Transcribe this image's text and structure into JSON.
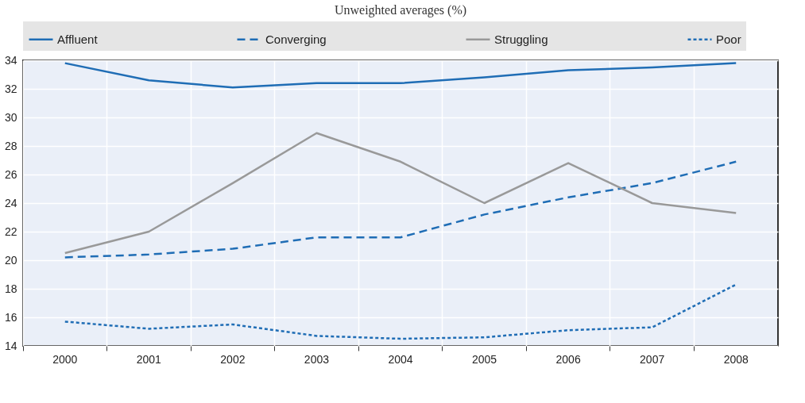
{
  "chart_data": {
    "type": "line",
    "subtitle": "Unweighted averages (%)",
    "categories": [
      "2000",
      "2001",
      "2002",
      "2003",
      "2004",
      "2005",
      "2006",
      "2007",
      "2008"
    ],
    "series": [
      {
        "name": "Affluent",
        "color": "#1f6db5",
        "line_style": "solid",
        "values": [
          33.8,
          32.6,
          32.1,
          32.4,
          32.4,
          32.8,
          33.3,
          33.5,
          33.8
        ]
      },
      {
        "name": "Converging",
        "color": "#1f6db5",
        "line_style": "dashed",
        "values": [
          20.2,
          20.4,
          20.8,
          21.6,
          21.6,
          23.2,
          24.4,
          25.4,
          26.9
        ]
      },
      {
        "name": "Struggling",
        "color": "#999999",
        "line_style": "solid",
        "values": [
          20.5,
          22.0,
          25.4,
          28.9,
          26.9,
          24.0,
          26.8,
          24.0,
          23.3
        ]
      },
      {
        "name": "Poor",
        "color": "#1f6db5",
        "line_style": "dotted",
        "values": [
          15.7,
          15.2,
          15.5,
          14.7,
          14.5,
          14.6,
          15.1,
          15.3,
          18.3
        ]
      }
    ],
    "ylim": [
      14,
      34
    ],
    "yticks": [
      14,
      16,
      18,
      20,
      22,
      24,
      26,
      28,
      30,
      32,
      34
    ],
    "grid": true,
    "legend": "top"
  }
}
